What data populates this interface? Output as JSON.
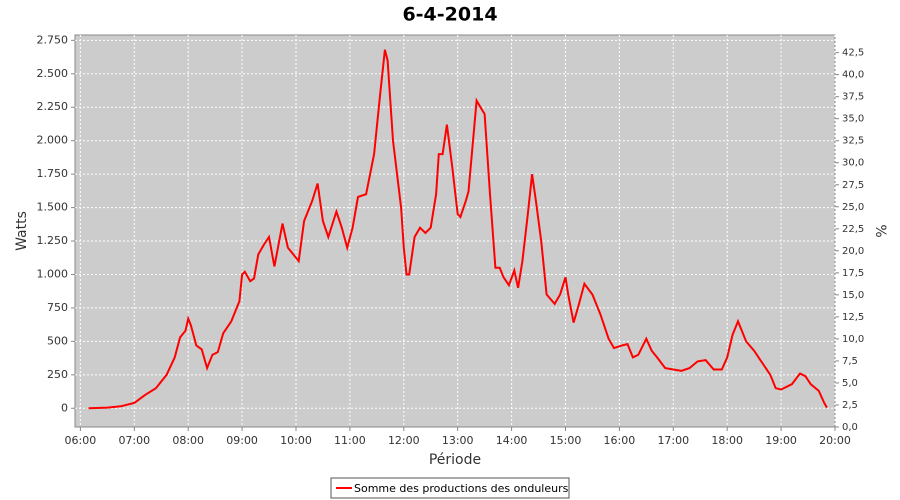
{
  "chart_data": {
    "type": "line",
    "title": "6-4-2014",
    "ylabel": "Watts",
    "y2label": "%",
    "xlabel": "Période",
    "grid": true,
    "legend": "bottom",
    "background": "#cccccc",
    "xlim": [
      5.9,
      20.0
    ],
    "xticks": [
      {
        "value": 6,
        "label": "06:00"
      },
      {
        "value": 7,
        "label": "07:00"
      },
      {
        "value": 8,
        "label": "08:00"
      },
      {
        "value": 9,
        "label": "09:00"
      },
      {
        "value": 10,
        "label": "10:00"
      },
      {
        "value": 11,
        "label": "11:00"
      },
      {
        "value": 12,
        "label": "12:00"
      },
      {
        "value": 13,
        "label": "13:00"
      },
      {
        "value": 14,
        "label": "14:00"
      },
      {
        "value": 15,
        "label": "15:00"
      },
      {
        "value": 16,
        "label": "16:00"
      },
      {
        "value": 17,
        "label": "17:00"
      },
      {
        "value": 18,
        "label": "18:00"
      },
      {
        "value": 19,
        "label": "19:00"
      },
      {
        "value": 20,
        "label": "20:00"
      }
    ],
    "ylim": [
      -140,
      2790
    ],
    "yticks": [
      0,
      250,
      500,
      750,
      {
        "value": 1000,
        "label": "1.000"
      },
      {
        "value": 1250,
        "label": "1.250"
      },
      {
        "value": 1500,
        "label": "1.500"
      },
      {
        "value": 1750,
        "label": "1.750"
      },
      {
        "value": 2000,
        "label": "2.000"
      },
      {
        "value": 2250,
        "label": "2.250"
      },
      {
        "value": 2500,
        "label": "2.500"
      },
      {
        "value": 2750,
        "label": "2.750"
      }
    ],
    "y2lim": [
      0,
      44.5
    ],
    "y2ticks": [
      {
        "value": 0,
        "label": "0,0"
      },
      {
        "value": 2.5,
        "label": "2,5"
      },
      {
        "value": 5,
        "label": "5,0"
      },
      {
        "value": 7.5,
        "label": "7,5"
      },
      {
        "value": 10,
        "label": "10,0"
      },
      {
        "value": 12.5,
        "label": "12,5"
      },
      {
        "value": 15,
        "label": "15,0"
      },
      {
        "value": 17.5,
        "label": "17,5"
      },
      {
        "value": 20,
        "label": "20,0"
      },
      {
        "value": 22.5,
        "label": "22,5"
      },
      {
        "value": 25,
        "label": "25,0"
      },
      {
        "value": 27.5,
        "label": "27,5"
      },
      {
        "value": 30,
        "label": "30,0"
      },
      {
        "value": 32.5,
        "label": "32,5"
      },
      {
        "value": 35,
        "label": "35,0"
      },
      {
        "value": 37.5,
        "label": "37,5"
      },
      {
        "value": 40,
        "label": "40,0"
      },
      {
        "value": 42.5,
        "label": "42,5"
      }
    ],
    "x": [
      6.15,
      6.5,
      6.75,
      7.0,
      7.2,
      7.4,
      7.6,
      7.75,
      7.85,
      7.95,
      8.0,
      8.05,
      8.15,
      8.25,
      8.35,
      8.45,
      8.55,
      8.65,
      8.8,
      8.95,
      9.0,
      9.05,
      9.15,
      9.22,
      9.3,
      9.4,
      9.5,
      9.6,
      9.75,
      9.85,
      9.95,
      10.05,
      10.15,
      10.3,
      10.4,
      10.5,
      10.6,
      10.75,
      10.85,
      10.95,
      11.05,
      11.15,
      11.3,
      11.45,
      11.55,
      11.65,
      11.7,
      11.8,
      11.95,
      12.0,
      12.05,
      12.1,
      12.2,
      12.3,
      12.4,
      12.5,
      12.6,
      12.65,
      12.72,
      12.8,
      12.9,
      13.0,
      13.05,
      13.15,
      13.2,
      13.35,
      13.45,
      13.5,
      13.6,
      13.7,
      13.78,
      13.85,
      13.95,
      14.05,
      14.12,
      14.2,
      14.3,
      14.38,
      14.45,
      14.55,
      14.65,
      14.8,
      14.9,
      15.0,
      15.05,
      15.15,
      15.25,
      15.35,
      15.5,
      15.65,
      15.8,
      15.9,
      16.05,
      16.15,
      16.25,
      16.35,
      16.5,
      16.6,
      16.7,
      16.85,
      17.0,
      17.15,
      17.3,
      17.45,
      17.6,
      17.75,
      17.9,
      18.0,
      18.1,
      18.2,
      18.35,
      18.5,
      18.65,
      18.8,
      18.9,
      19.0,
      19.2,
      19.35,
      19.45,
      19.55,
      19.7,
      19.8,
      19.85
    ],
    "series": [
      {
        "name": "Somme des productions des onduleurs",
        "color": "#ff0000",
        "values": [
          0,
          5,
          15,
          40,
          100,
          150,
          250,
          380,
          530,
          580,
          670,
          620,
          470,
          440,
          300,
          400,
          420,
          560,
          650,
          800,
          1000,
          1020,
          950,
          970,
          1150,
          1220,
          1280,
          1060,
          1380,
          1200,
          1150,
          1100,
          1400,
          1550,
          1680,
          1400,
          1280,
          1470,
          1350,
          1200,
          1350,
          1580,
          1600,
          1900,
          2300,
          2680,
          2600,
          2000,
          1500,
          1200,
          1000,
          1000,
          1280,
          1350,
          1310,
          1350,
          1600,
          1900,
          1900,
          2120,
          1800,
          1450,
          1430,
          1550,
          1620,
          2300,
          2230,
          2200,
          1600,
          1050,
          1050,
          980,
          920,
          1030,
          900,
          1100,
          1450,
          1750,
          1550,
          1250,
          850,
          780,
          850,
          980,
          850,
          640,
          780,
          930,
          850,
          700,
          520,
          450,
          470,
          480,
          380,
          400,
          520,
          430,
          380,
          300,
          290,
          280,
          300,
          350,
          360,
          290,
          290,
          380,
          550,
          650,
          500,
          430,
          340,
          250,
          150,
          140,
          180,
          260,
          240,
          180,
          130,
          40,
          5
        ]
      }
    ]
  }
}
